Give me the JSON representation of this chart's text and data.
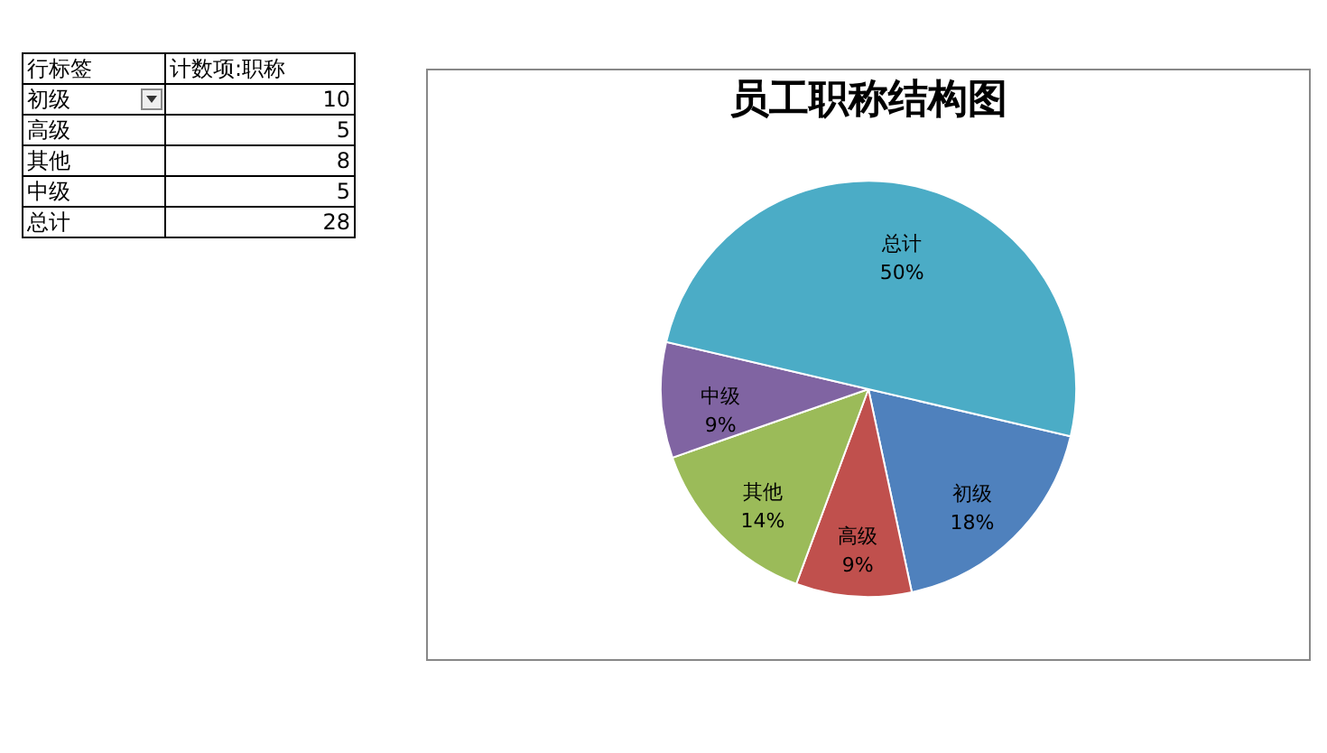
{
  "chart_data": [
    {
      "type": "other",
      "annotations": [
        "行标签",
        "计数项:职称"
      ],
      "categories": [
        "初级",
        "高级",
        "其他",
        "中级",
        "总计"
      ],
      "values": [
        10,
        5,
        8,
        5,
        28
      ],
      "data_labels": true
    },
    {
      "type": "pie",
      "title": "员工职称结构图",
      "categories": [
        "初级",
        "高级",
        "其他",
        "中级",
        "总计"
      ],
      "values": [
        18,
        9,
        14,
        9,
        50
      ],
      "value_labels": [
        "18%",
        "9%",
        "14%",
        "9%",
        "50%"
      ],
      "colors": [
        "#4f81bd",
        "#c0504d",
        "#9bbb59",
        "#8064a2",
        "#4bacc6"
      ]
    }
  ]
}
